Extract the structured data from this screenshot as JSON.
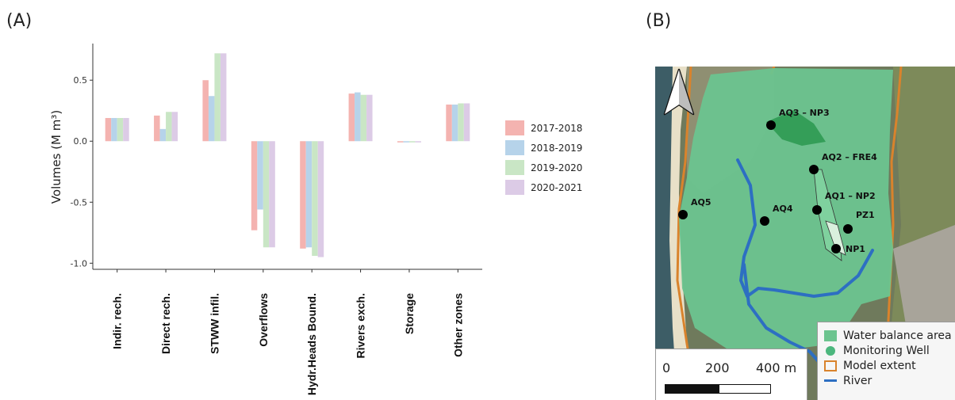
{
  "panel_a_label": "(A)",
  "panel_b_label": "(B)",
  "chart_data": {
    "type": "bar",
    "categories": [
      "Indir. rech.",
      "Direct rech.",
      "STWW infil.",
      "Overflows",
      "Hydr.Heads Bound.",
      "Rivers exch.",
      "Storage",
      "Other zones"
    ],
    "series": [
      {
        "name": "2017-2018",
        "color": "#f4b3b0",
        "values": [
          0.19,
          0.21,
          0.5,
          -0.73,
          -0.88,
          0.39,
          -0.01,
          0.3
        ]
      },
      {
        "name": "2018-2019",
        "color": "#b6d3ea",
        "values": [
          0.19,
          0.1,
          0.37,
          -0.56,
          -0.87,
          0.4,
          -0.01,
          0.3
        ]
      },
      {
        "name": "2019-2020",
        "color": "#c9e6c5",
        "values": [
          0.19,
          0.24,
          0.72,
          -0.87,
          -0.94,
          0.38,
          -0.01,
          0.31
        ]
      },
      {
        "name": "2020-2021",
        "color": "#dccbe6",
        "values": [
          0.19,
          0.24,
          0.72,
          -0.87,
          -0.95,
          0.38,
          -0.01,
          0.31
        ]
      }
    ],
    "ylabel": "Volumes (M m³)",
    "ylim": [
      -1.05,
      0.8
    ],
    "yticks": [
      0.5,
      0.0,
      -0.5,
      -1.0
    ],
    "ytick_labels": [
      "0.5",
      "0.0",
      "-0.5",
      "-1.0"
    ],
    "grid": false,
    "legend_position": "right"
  },
  "map": {
    "wells": [
      "AQ3 – NP3",
      "AQ2 – FRE4",
      "AQ1 – NP2",
      "AQ4",
      "AQ5",
      "PZ1",
      "NP1"
    ],
    "legend": [
      {
        "label": "Water balance area",
        "icon": "square-swatch",
        "color": "#6cc48f"
      },
      {
        "label": "Monitoring Well",
        "icon": "circle-marker",
        "color": "#4cb77e"
      },
      {
        "label": "Model extent",
        "icon": "outline-square",
        "color": "#d9832c"
      },
      {
        "label": "River",
        "icon": "line",
        "color": "#2d6fc2"
      }
    ],
    "scale_labels": [
      "0",
      "200",
      "400 m"
    ],
    "north_arrow": "north-arrow-icon"
  }
}
